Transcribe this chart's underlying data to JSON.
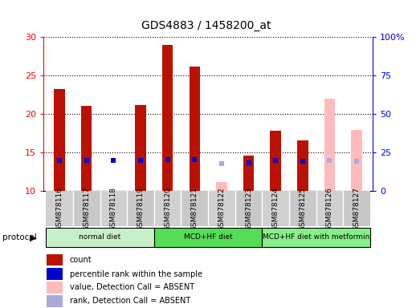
{
  "title": "GDS4883 / 1458200_at",
  "samples": [
    "GSM878116",
    "GSM878117",
    "GSM878118",
    "GSM878119",
    "GSM878120",
    "GSM878121",
    "GSM878122",
    "GSM878123",
    "GSM878124",
    "GSM878125",
    "GSM878126",
    "GSM878127"
  ],
  "count_values": [
    23.2,
    21.1,
    null,
    21.2,
    29.0,
    26.2,
    null,
    14.6,
    17.8,
    16.6,
    null,
    null
  ],
  "count_values_absent": [
    null,
    null,
    null,
    null,
    null,
    null,
    11.2,
    null,
    null,
    null,
    22.0,
    17.9
  ],
  "percentile_present": [
    20.0,
    20.0,
    19.6,
    20.0,
    20.6,
    20.4,
    null,
    18.5,
    19.7,
    19.5,
    null,
    null
  ],
  "percentile_absent": [
    null,
    null,
    null,
    null,
    null,
    null,
    17.7,
    null,
    null,
    null,
    20.0,
    19.4
  ],
  "left_ylim": [
    10,
    30
  ],
  "right_ylim": [
    0,
    100
  ],
  "left_yticks": [
    10,
    15,
    20,
    25,
    30
  ],
  "right_yticks": [
    0,
    25,
    50,
    75,
    100
  ],
  "right_yticklabels": [
    "0",
    "25",
    "50",
    "75",
    "100%"
  ],
  "groups": [
    {
      "label": "normal diet",
      "start": 0,
      "end": 4,
      "color": "#90ee90"
    },
    {
      "label": "MCD+HF diet",
      "start": 4,
      "end": 8,
      "color": "#4ddd4d"
    },
    {
      "label": "MCD+HF diet with metformin",
      "start": 8,
      "end": 12,
      "color": "#90ee90"
    }
  ],
  "bar_width": 0.4,
  "count_color": "#bb1100",
  "count_absent_color": "#ffbbbb",
  "percentile_color": "#0000cc",
  "percentile_absent_color": "#aaaadd",
  "plot_bg": "#ffffff",
  "legend_items": [
    {
      "label": "count",
      "color": "#bb1100"
    },
    {
      "label": "percentile rank within the sample",
      "color": "#0000cc"
    },
    {
      "label": "value, Detection Call = ABSENT",
      "color": "#ffbbbb"
    },
    {
      "label": "rank, Detection Call = ABSENT",
      "color": "#aaaadd"
    }
  ]
}
